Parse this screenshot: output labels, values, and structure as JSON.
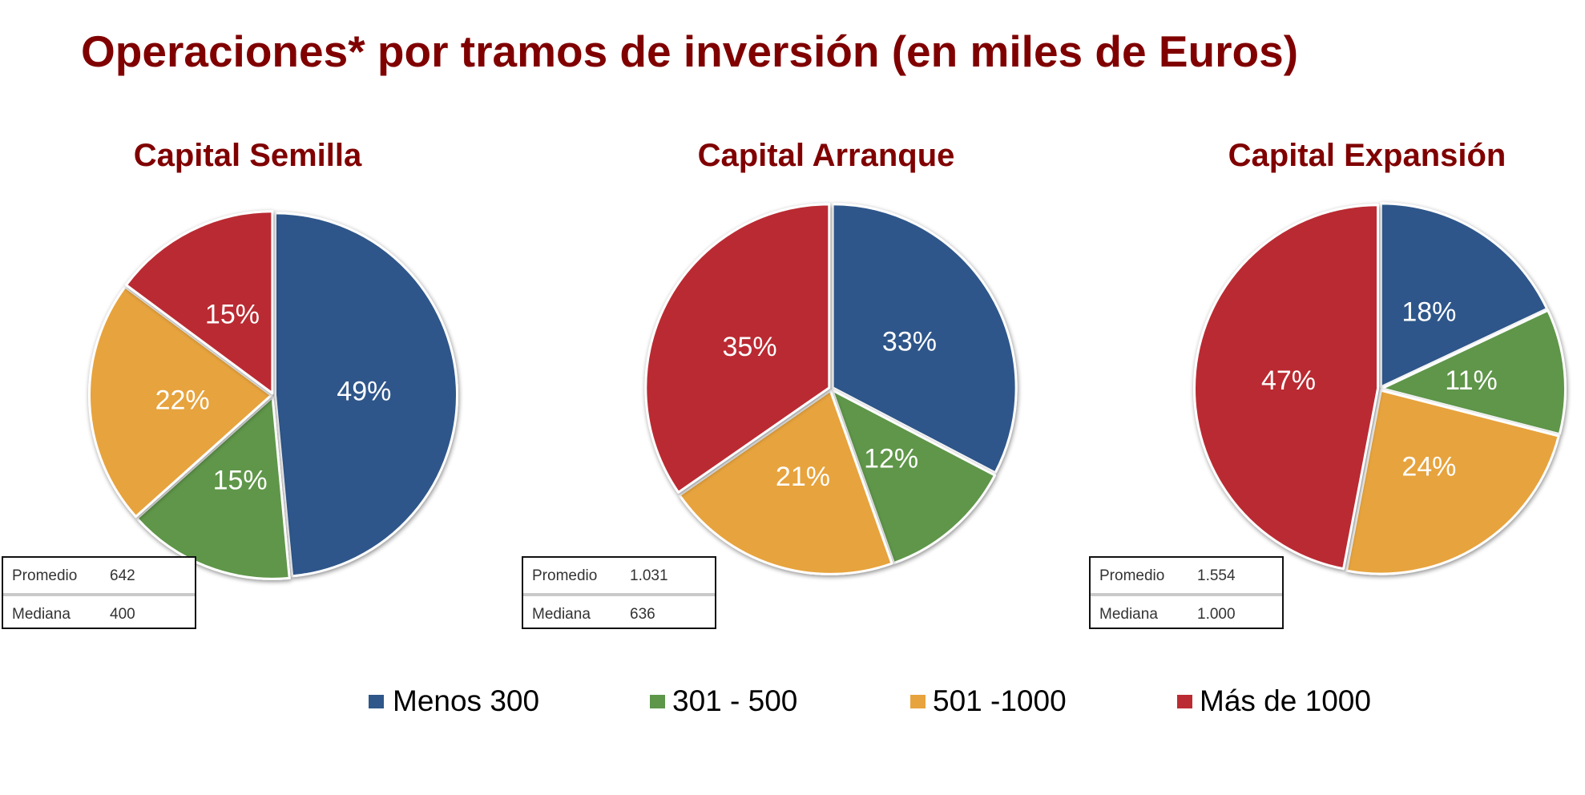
{
  "title": "Operaciones* por tramos de inversión (en miles de Euros)",
  "colors": {
    "title": "#800000",
    "Menos 300": "#2F578A",
    "301 - 500": "#5E964A",
    "501 -1000": "#E7A33E",
    "Más de 1000": "#BA2C32"
  },
  "legend": [
    {
      "label": "Menos 300",
      "color": "#2F578A"
    },
    {
      "label": "301 - 500",
      "color": "#5E964A"
    },
    {
      "label": "501 -1000",
      "color": "#E7A33E"
    },
    {
      "label": "Más de 1000",
      "color": "#BA2C32"
    }
  ],
  "panels": [
    {
      "title": "Capital Semilla",
      "stats": [
        {
          "label": "Promedio",
          "value": "642"
        },
        {
          "label": "Mediana",
          "value": "400"
        }
      ]
    },
    {
      "title": "Capital Arranque",
      "stats": [
        {
          "label": "Promedio",
          "value": "1.031"
        },
        {
          "label": "Mediana",
          "value": "636"
        }
      ]
    },
    {
      "title": "Capital Expansión",
      "stats": [
        {
          "label": "Promedio",
          "value": "1.554"
        },
        {
          "label": "Mediana",
          "value": "1.000"
        }
      ]
    }
  ],
  "chart_data": [
    {
      "type": "pie",
      "title": "Capital Semilla",
      "categories": [
        "Menos 300",
        "301 - 500",
        "501 -1000",
        "Más de 1000"
      ],
      "values": [
        49,
        15,
        22,
        15
      ],
      "labels": [
        "49%",
        "15%",
        "22%",
        "15%"
      ],
      "unit": "%",
      "start_angle": "12 o'clock, clockwise",
      "annotations": {
        "Promedio": "642",
        "Mediana": "400"
      },
      "legend_position": "bottom"
    },
    {
      "type": "pie",
      "title": "Capital Arranque",
      "categories": [
        "Menos 300",
        "301 - 500",
        "501 -1000",
        "Más de 1000"
      ],
      "values": [
        33,
        12,
        21,
        35
      ],
      "labels": [
        "33%",
        "12%",
        "21%",
        "35%"
      ],
      "unit": "%",
      "start_angle": "12 o'clock, clockwise",
      "annotations": {
        "Promedio": "1.031",
        "Mediana": "636"
      },
      "legend_position": "bottom"
    },
    {
      "type": "pie",
      "title": "Capital Expansión",
      "categories": [
        "Menos 300",
        "301 - 500",
        "501 -1000",
        "Más de 1000"
      ],
      "values": [
        18,
        11,
        24,
        47
      ],
      "labels": [
        "18%",
        "11%",
        "24%",
        "47%"
      ],
      "unit": "%",
      "start_angle": "12 o'clock, clockwise",
      "annotations": {
        "Promedio": "1.554",
        "Mediana": "1.000"
      },
      "legend_position": "bottom"
    }
  ]
}
